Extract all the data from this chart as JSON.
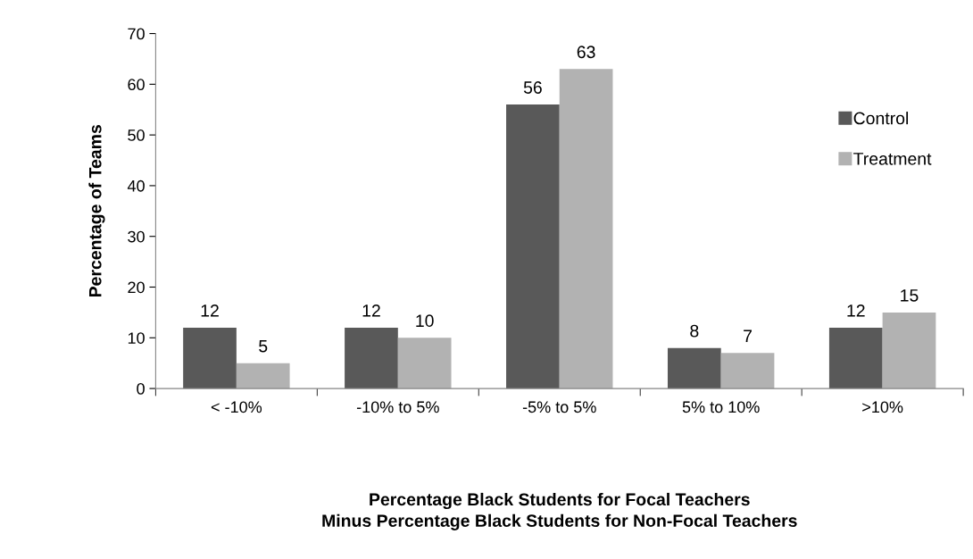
{
  "chart_data": {
    "type": "bar",
    "xlabel": "Percentage Black Students for Focal Teachers\nMinus Percentage Black Students for Non-Focal Teachers",
    "ylabel": "Percentage of Teams",
    "categories": [
      "< -10%",
      "-10% to 5%",
      "-5% to 5%",
      "5% to 10%",
      ">10%"
    ],
    "series": [
      {
        "name": "Control",
        "color": "#595959",
        "values": [
          12,
          12,
          56,
          8,
          12
        ]
      },
      {
        "name": "Treatment",
        "color": "#b2b2b2",
        "values": [
          5,
          10,
          63,
          7,
          15
        ]
      }
    ],
    "ylim": [
      0,
      70
    ],
    "yticks": [
      0,
      10,
      20,
      30,
      40,
      50,
      60,
      70
    ],
    "data_labels": true,
    "grid": false,
    "legend": "right"
  }
}
